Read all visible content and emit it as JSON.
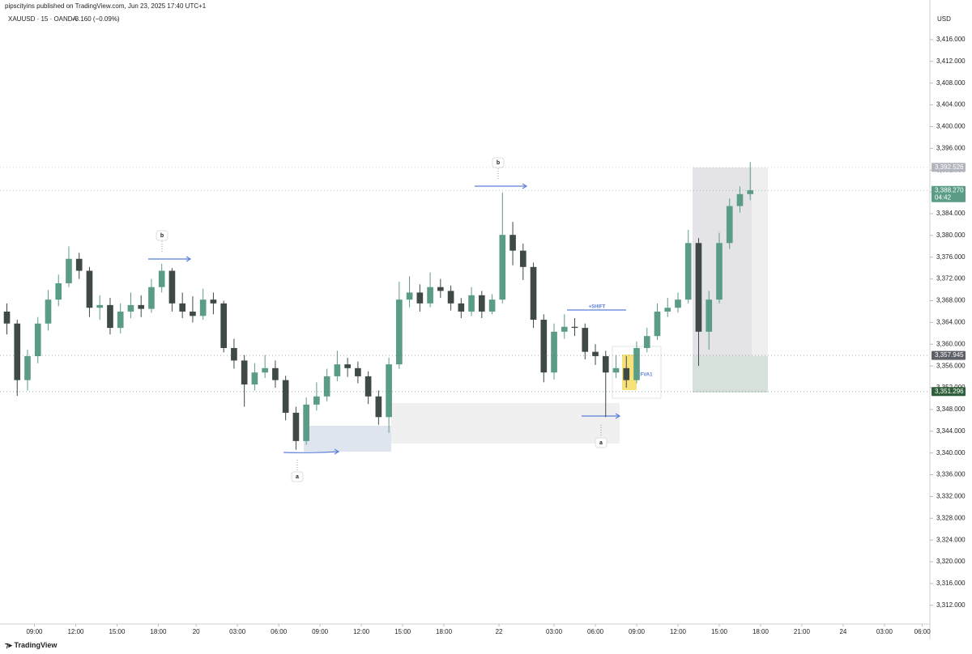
{
  "header": {
    "publisher": "pipscityins published on TradingView.com, Jun 23, 2025 17:40 UTC+1",
    "symbol": "XAUUSD · 15 · OANDA",
    "change": "−3.160 (−0.09%)",
    "currency": "USD"
  },
  "footer": {
    "brand": "TradingView"
  },
  "annotations": [
    "b",
    "b",
    "a",
    "a",
    "+SHIFT",
    "FVA1"
  ],
  "chart_data": {
    "type": "candlestick",
    "up_color": "#5b9c86",
    "down_color": "#3f4a48",
    "x": [
      0,
      3,
      6,
      9,
      12,
      15,
      18,
      21,
      24,
      27,
      30,
      33,
      36,
      39,
      42,
      45,
      48,
      51,
      54,
      57,
      60,
      63,
      66,
      69,
      72,
      75,
      78,
      81,
      84,
      87,
      90,
      93,
      96,
      99,
      102,
      105,
      108,
      111,
      114,
      117,
      120,
      123,
      126,
      129,
      132,
      135,
      138,
      141,
      144,
      147,
      150,
      153,
      156,
      159,
      162,
      165,
      168,
      171,
      174,
      177,
      180,
      183,
      186,
      189,
      192,
      195,
      198,
      201,
      204,
      207,
      210,
      213,
      216
    ],
    "series": [
      {
        "open": [
          3366,
          3363.8,
          3353.4,
          3357.8,
          3363.8,
          3368.2,
          3371.2,
          3375.7,
          3373.5,
          3366.7,
          3367.2,
          3363,
          3366,
          3367.2,
          3366.5,
          3370.5,
          3373.5,
          3367.5,
          3366,
          3365.2,
          3368.2,
          3367.5,
          3359.3,
          3357,
          3352.6,
          3354.8,
          3355.6,
          3353.4,
          3347.4,
          3342.2,
          3348.9,
          3350.4,
          3354.1,
          3356.3,
          3355.6,
          3354.1,
          3350.4,
          3346.6,
          3356.3,
          3368.2,
          3369.5,
          3367.5,
          3370.5,
          3369.8,
          3367.5,
          3366,
          3369,
          3366,
          3368.2,
          3380.1,
          3377.2,
          3374.2,
          3364.5,
          3354.8,
          3362.3,
          3363.2,
          3363,
          3358.6,
          3357.8,
          3354.8,
          3355.6,
          3353.4,
          3359.3,
          3361.5,
          3366,
          3366.7,
          3368.2,
          3378.6,
          3362.3,
          3368.2,
          3378.6,
          3385.4,
          3387.6
        ],
        "high": [
          3367.5,
          3364.5,
          3359,
          3365,
          3370,
          3372.8,
          3378,
          3376.8,
          3374.2,
          3369,
          3368.5,
          3367.5,
          3369.5,
          3369,
          3372,
          3374.8,
          3374,
          3369.5,
          3368.8,
          3370.2,
          3369.5,
          3368,
          3361,
          3358,
          3356.5,
          3358,
          3357,
          3354.2,
          3348.5,
          3350.2,
          3353,
          3355.5,
          3358.8,
          3357.5,
          3356.8,
          3355,
          3351.5,
          3357.5,
          3371.5,
          3372.5,
          3371,
          3373.2,
          3372,
          3370.8,
          3368.5,
          3370.5,
          3369.8,
          3369.2,
          3387.9,
          3382.5,
          3378.5,
          3375,
          3365.5,
          3363.8,
          3365.5,
          3364.8,
          3363.8,
          3360,
          3358.8,
          3358,
          3357.8,
          3360.5,
          3363,
          3367.5,
          3368.5,
          3369.5,
          3381,
          3379.5,
          3369.8,
          3380.5,
          3386.8,
          3389,
          3393.5
        ],
        "low": [
          3361.8,
          3350.5,
          3351.5,
          3356.5,
          3362.5,
          3367,
          3370.5,
          3372,
          3365,
          3364.5,
          3361.8,
          3362,
          3364.8,
          3365,
          3365.8,
          3369.5,
          3366,
          3364.8,
          3364,
          3364.5,
          3365.5,
          3358.5,
          3355.5,
          3348.5,
          3351.5,
          3353.8,
          3352,
          3346,
          3340.6,
          3341.5,
          3347.8,
          3349.5,
          3353.2,
          3354,
          3352.8,
          3349,
          3345.2,
          3343.7,
          3355.5,
          3366.8,
          3366,
          3366.8,
          3368.5,
          3366.2,
          3364.8,
          3365.2,
          3364.8,
          3365.5,
          3367.5,
          3374.5,
          3371.8,
          3363,
          3353,
          3353.5,
          3361,
          3361.5,
          3357.2,
          3356.2,
          3346.6,
          3353.8,
          3352,
          3352.8,
          3358.5,
          3360.8,
          3365,
          3365.8,
          3367.5,
          3356,
          3359,
          3367.5,
          3377.5,
          3384.2,
          3386.5
        ],
        "close": [
          3363.8,
          3353.4,
          3357.8,
          3363.8,
          3368.2,
          3371.2,
          3375.7,
          3373.5,
          3366.7,
          3367.2,
          3363,
          3366,
          3367.2,
          3366.5,
          3370.5,
          3373.5,
          3367.5,
          3366,
          3365.2,
          3368.2,
          3367.5,
          3359.3,
          3357,
          3352.6,
          3354.8,
          3355.6,
          3353.4,
          3347.4,
          3342.2,
          3348.9,
          3350.4,
          3354.1,
          3356.3,
          3355.6,
          3354.1,
          3350.4,
          3346.6,
          3356.3,
          3368.2,
          3369.5,
          3367.5,
          3370.5,
          3369.8,
          3367.5,
          3366,
          3369,
          3366,
          3368.2,
          3380.1,
          3377.2,
          3374.2,
          3364.5,
          3354.8,
          3362.3,
          3363.2,
          3363,
          3358.6,
          3357.8,
          3354.8,
          3355.6,
          3353.4,
          3359.3,
          3361.5,
          3366,
          3366.7,
          3368.2,
          3378.6,
          3362.3,
          3368.2,
          3378.6,
          3385.4,
          3387.6,
          3388.3
        ]
      }
    ],
    "xlim": [
      -2,
      268.2
    ],
    "xticks": [
      {
        "value": 8,
        "label": "09:00"
      },
      {
        "value": 20,
        "label": "12:00"
      },
      {
        "value": 32,
        "label": "15:00"
      },
      {
        "value": 44,
        "label": "18:00"
      },
      {
        "value": 55,
        "label": "20"
      },
      {
        "value": 67,
        "label": "03:00"
      },
      {
        "value": 79,
        "label": "06:00"
      },
      {
        "value": 91,
        "label": "09:00"
      },
      {
        "value": 103,
        "label": "12:00"
      },
      {
        "value": 115,
        "label": "15:00"
      },
      {
        "value": 127,
        "label": "18:00"
      },
      {
        "value": 143,
        "label": "22"
      },
      {
        "value": 159,
        "label": "03:00"
      },
      {
        "value": 171,
        "label": "06:00"
      },
      {
        "value": 183,
        "label": "09:00"
      },
      {
        "value": 195,
        "label": "12:00"
      },
      {
        "value": 207,
        "label": "15:00"
      },
      {
        "value": 219,
        "label": "18:00"
      },
      {
        "value": 231,
        "label": "21:00"
      },
      {
        "value": 243,
        "label": "24"
      },
      {
        "value": 255,
        "label": "03:00"
      },
      {
        "value": 266,
        "label": "06:00"
      }
    ],
    "ylim": [
      3308.7,
      3421.2
    ],
    "yticks": [
      {
        "value": 3312,
        "label": "3,312.000"
      },
      {
        "value": 3316,
        "label": "3,316.000"
      },
      {
        "value": 3320,
        "label": "3,320.000"
      },
      {
        "value": 3324,
        "label": "3,324.000"
      },
      {
        "value": 3328,
        "label": "3,328.000"
      },
      {
        "value": 3332,
        "label": "3,332.000"
      },
      {
        "value": 3336,
        "label": "3,336.000"
      },
      {
        "value": 3340,
        "label": "3,340.000"
      },
      {
        "value": 3344,
        "label": "3,344.000"
      },
      {
        "value": 3348,
        "label": "3,348.000"
      },
      {
        "value": 3352,
        "label": "3,352.000"
      },
      {
        "value": 3356,
        "label": "3,356.000"
      },
      {
        "value": 3360,
        "label": "3,360.000"
      },
      {
        "value": 3364,
        "label": "3,364.000"
      },
      {
        "value": 3368,
        "label": "3,368.000"
      },
      {
        "value": 3372,
        "label": "3,372.000"
      },
      {
        "value": 3376,
        "label": "3,376.000"
      },
      {
        "value": 3380,
        "label": "3,380.000"
      },
      {
        "value": 3384,
        "label": "3,384.000"
      },
      {
        "value": 3388,
        "label": "3,388.000"
      },
      {
        "value": 3392,
        "label": "3,392.000"
      },
      {
        "value": 3396,
        "label": "3,396.000"
      },
      {
        "value": 3400,
        "label": "3,400.000"
      },
      {
        "value": 3404,
        "label": "3,404.000"
      },
      {
        "value": 3408,
        "label": "3,408.000"
      },
      {
        "value": 3412,
        "label": "3,412.000"
      },
      {
        "value": 3416,
        "label": "3,416.000"
      }
    ],
    "markers": [
      {
        "value": 3392.526,
        "label": "3,392.526",
        "color": "#b2b5be"
      },
      {
        "value": 3388.27,
        "label": "3,388.270",
        "sublabel": "04:42",
        "color": "#5b9c86"
      },
      {
        "value": 3357.945,
        "label": "3,357.945",
        "color": "#5d6066"
      },
      {
        "value": 3351.296,
        "label": "3,351.296",
        "color": "#2e5e3a"
      }
    ]
  }
}
